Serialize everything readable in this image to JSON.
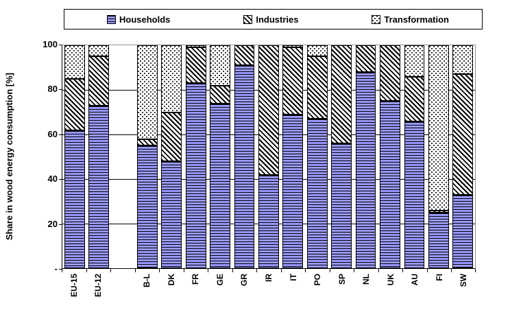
{
  "legend": {
    "items": [
      {
        "label": "Households",
        "swatch": "blue-horizontal-lines"
      },
      {
        "label": "Industries",
        "swatch": "black-diagonal-hatch"
      },
      {
        "label": "Transformation",
        "swatch": "black-dots-on-white"
      }
    ]
  },
  "chart_data": {
    "type": "bar",
    "stacked": true,
    "orientation": "vertical",
    "title": "",
    "xlabel": "",
    "ylabel": "Share in wood energy consumption [%]",
    "ylim": [
      0,
      100
    ],
    "grid": true,
    "gridline_values": [
      20,
      40,
      60,
      80
    ],
    "legend_position": "top",
    "y_ticks": [
      {
        "label": "100",
        "value": 100
      },
      {
        "label": "80",
        "value": 80
      },
      {
        "label": "60",
        "value": 60
      },
      {
        "label": "40",
        "value": 40
      },
      {
        "label": "20",
        "value": 20
      },
      {
        "label": "-",
        "value": 0
      }
    ],
    "categories": [
      "EU-15",
      "EU-12",
      "",
      "B-L",
      "DK",
      "FR",
      "GE",
      "GR",
      "IR",
      "IT",
      "PO",
      "SP",
      "NL",
      "UK",
      "AU",
      "FI",
      "SW"
    ],
    "series": [
      {
        "name": "Households",
        "pattern": "blue-horizontal-lines",
        "color": "#9999FF",
        "values": [
          62,
          73,
          null,
          55,
          48,
          83,
          74,
          91,
          42,
          69,
          67,
          56,
          88,
          75,
          66,
          25,
          33
        ]
      },
      {
        "name": "Industries",
        "pattern": "black-diagonal-hatch",
        "color": "#000000",
        "values": [
          23,
          22,
          null,
          3,
          22,
          16,
          8,
          9,
          58,
          30,
          28,
          44,
          12,
          25,
          20,
          1,
          54
        ]
      },
      {
        "name": "Transformation",
        "pattern": "black-dots-on-white",
        "color": "#000000",
        "values": [
          15,
          5,
          null,
          42,
          30,
          1,
          18,
          0,
          0,
          1,
          5,
          0,
          0,
          0,
          14,
          74,
          13
        ]
      }
    ]
  }
}
